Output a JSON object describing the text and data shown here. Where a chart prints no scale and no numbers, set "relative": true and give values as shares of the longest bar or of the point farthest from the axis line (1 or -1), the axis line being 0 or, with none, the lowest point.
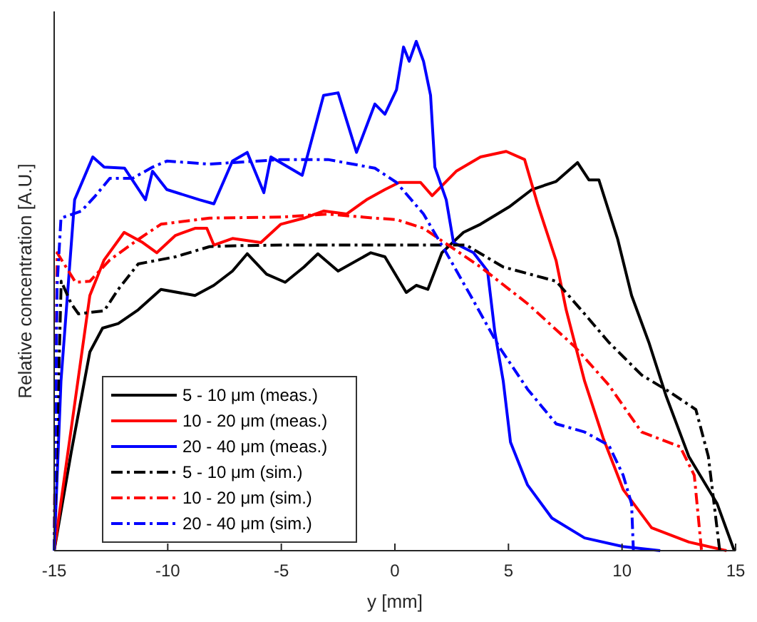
{
  "chart_data": {
    "type": "line",
    "relative": true,
    "xlabel": "y [mm]",
    "ylabel": "Relative concentration [A.U.]",
    "xlim": [
      -15,
      15
    ],
    "xticks": [
      -15,
      -10,
      -5,
      0,
      5,
      10,
      15
    ],
    "legend": "bottom left",
    "series": [
      {
        "name": "5 - 10 μm (meas.)",
        "color": "#000000",
        "line_style": "solid",
        "x": [
          -15,
          -14.25,
          -13.43,
          -12.87,
          -12.18,
          -11.3,
          -10.3,
          -8.8,
          -7.97,
          -7.15,
          -6.5,
          -5.65,
          -4.83,
          -4.0,
          -3.39,
          -2.5,
          -1.06,
          -0.44,
          0.5,
          0.94,
          1.45,
          2.07,
          3.02,
          3.77,
          5.03,
          6.03,
          7.1,
          8.04,
          8.54,
          8.98,
          9.8,
          10.42,
          11.18,
          11.93,
          12.94,
          14.19,
          14.94
        ],
        "values": [
          0,
          0.193,
          0.39,
          0.437,
          0.446,
          0.473,
          0.513,
          0.501,
          0.521,
          0.549,
          0.583,
          0.543,
          0.527,
          0.557,
          0.583,
          0.549,
          0.585,
          0.577,
          0.507,
          0.521,
          0.513,
          0.585,
          0.625,
          0.641,
          0.675,
          0.709,
          0.725,
          0.762,
          0.728,
          0.728,
          0.613,
          0.501,
          0.409,
          0.305,
          0.185,
          0.092,
          0
        ]
      },
      {
        "name": "10 - 20 μm (meas.)",
        "color": "#ff0000",
        "line_style": "solid",
        "x": [
          -15,
          -13.43,
          -12.8,
          -11.92,
          -11.1,
          -10.48,
          -9.66,
          -8.8,
          -8.28,
          -7.97,
          -7.15,
          -5.9,
          -5.02,
          -4.0,
          -3.14,
          -2.13,
          -1.25,
          -0.44,
          0.19,
          1.13,
          1.64,
          2.7,
          3.77,
          4.9,
          5.71,
          6.28,
          7.1,
          7.54,
          8.35,
          9.17,
          10.05,
          11.3,
          12.94,
          14.6
        ],
        "values": [
          0,
          0.501,
          0.571,
          0.625,
          0.605,
          0.585,
          0.619,
          0.633,
          0.633,
          0.6,
          0.613,
          0.605,
          0.641,
          0.653,
          0.667,
          0.661,
          0.689,
          0.709,
          0.723,
          0.723,
          0.697,
          0.745,
          0.773,
          0.784,
          0.768,
          0.681,
          0.569,
          0.473,
          0.333,
          0.221,
          0.12,
          0.045,
          0.017,
          0
        ]
      },
      {
        "name": "20 - 40 μm (meas.)",
        "color": "#0000ff",
        "line_style": "solid",
        "x": [
          -15,
          -14.7,
          -14.1,
          -13.3,
          -12.8,
          -11.9,
          -10.98,
          -10.67,
          -10.04,
          -8.6,
          -7.97,
          -7.15,
          -6.5,
          -5.77,
          -5.46,
          -4.08,
          -3.14,
          -2.5,
          -1.69,
          -0.88,
          -0.44,
          0.07,
          0.38,
          0.63,
          0.94,
          1.26,
          1.57,
          1.76,
          2.26,
          2.58,
          3.46,
          4.08,
          4.4,
          4.77,
          5.09,
          5.84,
          6.91,
          8.35,
          10.05,
          11.68
        ],
        "values": [
          0,
          0.333,
          0.689,
          0.773,
          0.753,
          0.751,
          0.689,
          0.745,
          0.709,
          0.689,
          0.681,
          0.765,
          0.782,
          0.703,
          0.773,
          0.737,
          0.894,
          0.899,
          0.782,
          0.877,
          0.857,
          0.905,
          0.989,
          0.961,
          1,
          0.961,
          0.894,
          0.753,
          0.689,
          0.605,
          0.585,
          0.549,
          0.429,
          0.333,
          0.213,
          0.129,
          0.064,
          0.025,
          0.008,
          0
        ]
      },
      {
        "name": "5 - 10 μm (sim.)",
        "color": "#000000",
        "line_style": "dashdot",
        "x": [
          -15,
          -14.69,
          -14.25,
          -13.93,
          -12.8,
          -12.18,
          -11.3,
          -9.66,
          -8.16,
          -6.9,
          -5.02,
          0.2,
          3.14,
          4.77,
          7.1,
          8.35,
          9.42,
          10.86,
          12.12,
          13.25,
          13.8,
          14.3
        ],
        "values": [
          0,
          0.529,
          0.485,
          0.465,
          0.471,
          0.513,
          0.563,
          0.577,
          0.597,
          0.599,
          0.6,
          0.6,
          0.6,
          0.557,
          0.529,
          0.465,
          0.409,
          0.345,
          0.311,
          0.277,
          0.185,
          0
        ]
      },
      {
        "name": "10 - 20 μm (sim.)",
        "color": "#ff0000",
        "line_style": "dashdot",
        "x": [
          -15,
          -14.87,
          -14.06,
          -13.43,
          -12.55,
          -11.3,
          -10.3,
          -8.16,
          -5.02,
          -2.95,
          -0.88,
          0.07,
          1.26,
          3.77,
          5.84,
          7.91,
          9.42,
          10.42,
          10.86,
          12.56,
          13.18,
          13.5
        ],
        "values": [
          0,
          0.585,
          0.527,
          0.529,
          0.571,
          0.611,
          0.641,
          0.653,
          0.655,
          0.661,
          0.653,
          0.65,
          0.633,
          0.557,
          0.485,
          0.401,
          0.325,
          0.261,
          0.233,
          0.204,
          0.148,
          0
        ]
      },
      {
        "name": "20 - 40 μm (sim.)",
        "color": "#0000ff",
        "line_style": "dashdot",
        "x": [
          -15,
          -14.87,
          -14.7,
          -13.8,
          -13.18,
          -12.55,
          -11.55,
          -10.67,
          -10.04,
          -8.16,
          -5.02,
          -2.95,
          -0.88,
          0.07,
          1.26,
          2.26,
          3.33,
          4.58,
          5.84,
          7.1,
          8.35,
          9.42,
          10.05,
          10.42,
          10.5
        ],
        "values": [
          0,
          0.521,
          0.653,
          0.667,
          0.697,
          0.731,
          0.731,
          0.753,
          0.765,
          0.759,
          0.768,
          0.768,
          0.751,
          0.723,
          0.661,
          0.585,
          0.501,
          0.401,
          0.317,
          0.249,
          0.233,
          0.207,
          0.148,
          0.092,
          0
        ]
      }
    ]
  }
}
